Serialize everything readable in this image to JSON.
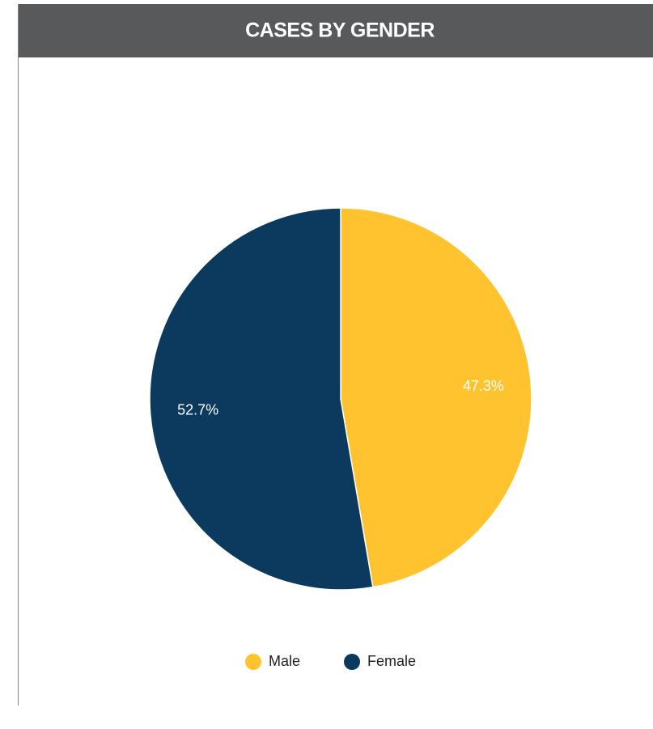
{
  "chart_data": {
    "type": "pie",
    "title": "CASES BY GENDER",
    "categories": [
      "Male",
      "Female"
    ],
    "values": [
      47.3,
      52.7
    ],
    "value_labels": [
      "47.3%",
      "52.7%"
    ],
    "colors": [
      "#fec32e",
      "#0b3a5e"
    ],
    "legend": "bottom"
  }
}
